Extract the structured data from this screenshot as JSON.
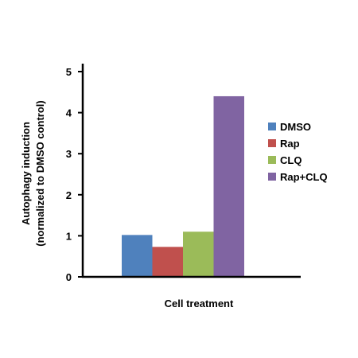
{
  "chart_data": {
    "type": "bar",
    "categories": [
      "DMSO",
      "Rap",
      "CLQ",
      "Rap+CLQ"
    ],
    "values": [
      1.02,
      0.73,
      1.1,
      4.4
    ],
    "colors": [
      "#4f81bd",
      "#c0504d",
      "#9bbb59",
      "#8064a2"
    ],
    "title": "",
    "xlabel": "Cell treatment",
    "ylabel_line1": "Autophagy induction",
    "ylabel_line2": "(normalized to DMSO control)",
    "ylim": [
      0,
      5
    ],
    "yticks": [
      "0",
      "1",
      "2",
      "3",
      "4",
      "5"
    ],
    "grid": false,
    "legend": {
      "position": "right",
      "entries": [
        "DMSO",
        "Rap",
        "CLQ",
        "Rap+CLQ"
      ]
    }
  }
}
